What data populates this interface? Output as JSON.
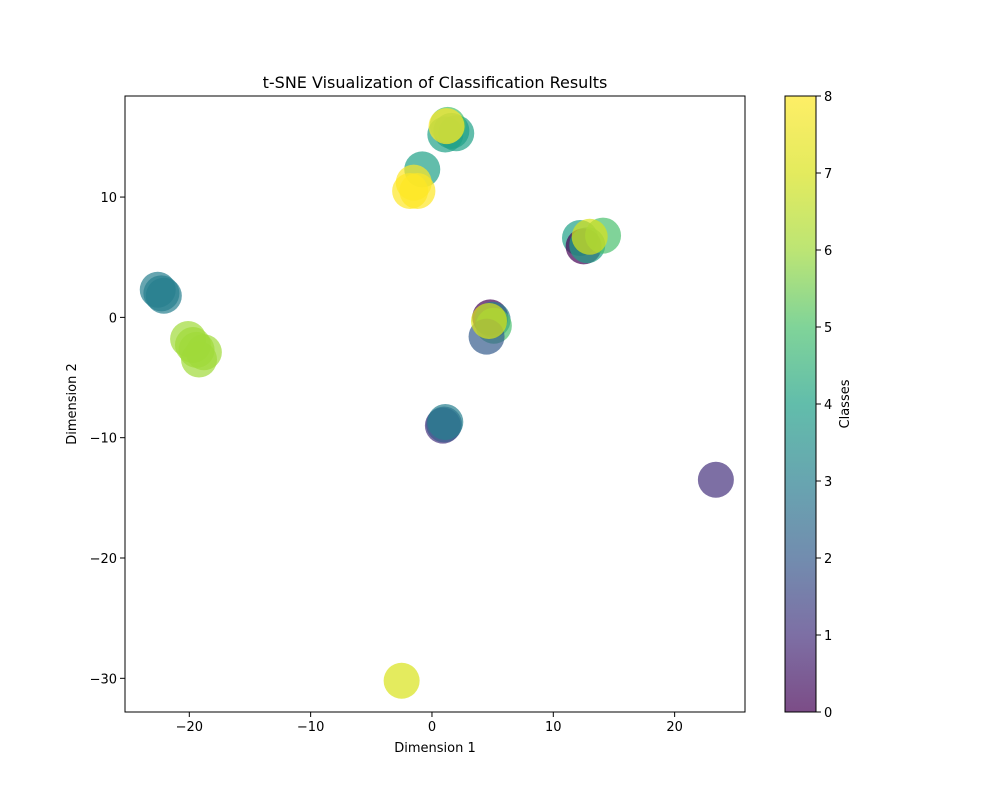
{
  "chart_data": {
    "type": "scatter",
    "title": "t-SNE Visualization of Classification Results",
    "xlabel": "Dimension 1",
    "ylabel": "Dimension 2",
    "xlim": [
      -25.3,
      25.8
    ],
    "ylim": [
      -32.8,
      18.4
    ],
    "xticks": [
      -20,
      -10,
      0,
      10,
      20
    ],
    "yticks": [
      -30,
      -20,
      -10,
      0,
      10
    ],
    "grid": false,
    "colorbar": {
      "label": "Classes",
      "range": [
        0,
        8
      ],
      "ticks": [
        0,
        1,
        2,
        3,
        4,
        5,
        6,
        7,
        8
      ],
      "colormap": "viridis",
      "alpha": 0.7
    },
    "points": [
      {
        "x": 1.1,
        "y": 15.2,
        "c": 4
      },
      {
        "x": 1.6,
        "y": 15.5,
        "c": 4
      },
      {
        "x": 2.0,
        "y": 15.3,
        "c": 4
      },
      {
        "x": 1.3,
        "y": 16.0,
        "c": 5
      },
      {
        "x": 1.2,
        "y": 15.9,
        "c": 8
      },
      {
        "x": -0.8,
        "y": 12.3,
        "c": 4
      },
      {
        "x": -1.5,
        "y": 11.2,
        "c": 8
      },
      {
        "x": -1.8,
        "y": 10.5,
        "c": 8
      },
      {
        "x": -1.2,
        "y": 10.5,
        "c": 8
      },
      {
        "x": 12.2,
        "y": 6.6,
        "c": 4
      },
      {
        "x": 12.5,
        "y": 5.9,
        "c": 0
      },
      {
        "x": 12.8,
        "y": 6.0,
        "c": 4
      },
      {
        "x": 14.1,
        "y": 6.8,
        "c": 5
      },
      {
        "x": 13.0,
        "y": 6.7,
        "c": 7
      },
      {
        "x": -22.6,
        "y": 2.3,
        "c": 3
      },
      {
        "x": -22.3,
        "y": 2.0,
        "c": 3
      },
      {
        "x": -22.1,
        "y": 1.8,
        "c": 3
      },
      {
        "x": 4.8,
        "y": 0.0,
        "c": 0
      },
      {
        "x": 5.0,
        "y": -0.2,
        "c": 3
      },
      {
        "x": 5.1,
        "y": -0.7,
        "c": 5
      },
      {
        "x": 4.5,
        "y": -1.6,
        "c": 2
      },
      {
        "x": 4.7,
        "y": -0.3,
        "c": 7
      },
      {
        "x": -20.1,
        "y": -1.8,
        "c": 6
      },
      {
        "x": -19.7,
        "y": -2.3,
        "c": 6
      },
      {
        "x": -19.4,
        "y": -2.7,
        "c": 6
      },
      {
        "x": -18.8,
        "y": -2.9,
        "c": 6
      },
      {
        "x": -19.2,
        "y": -3.5,
        "c": 6
      },
      {
        "x": 0.9,
        "y": -9.0,
        "c": 1
      },
      {
        "x": 1.0,
        "y": -8.9,
        "c": 2
      },
      {
        "x": 1.1,
        "y": -8.7,
        "c": 3
      },
      {
        "x": 23.4,
        "y": -13.5,
        "c": 1
      },
      {
        "x": -2.5,
        "y": -30.2,
        "c": 7
      }
    ]
  }
}
